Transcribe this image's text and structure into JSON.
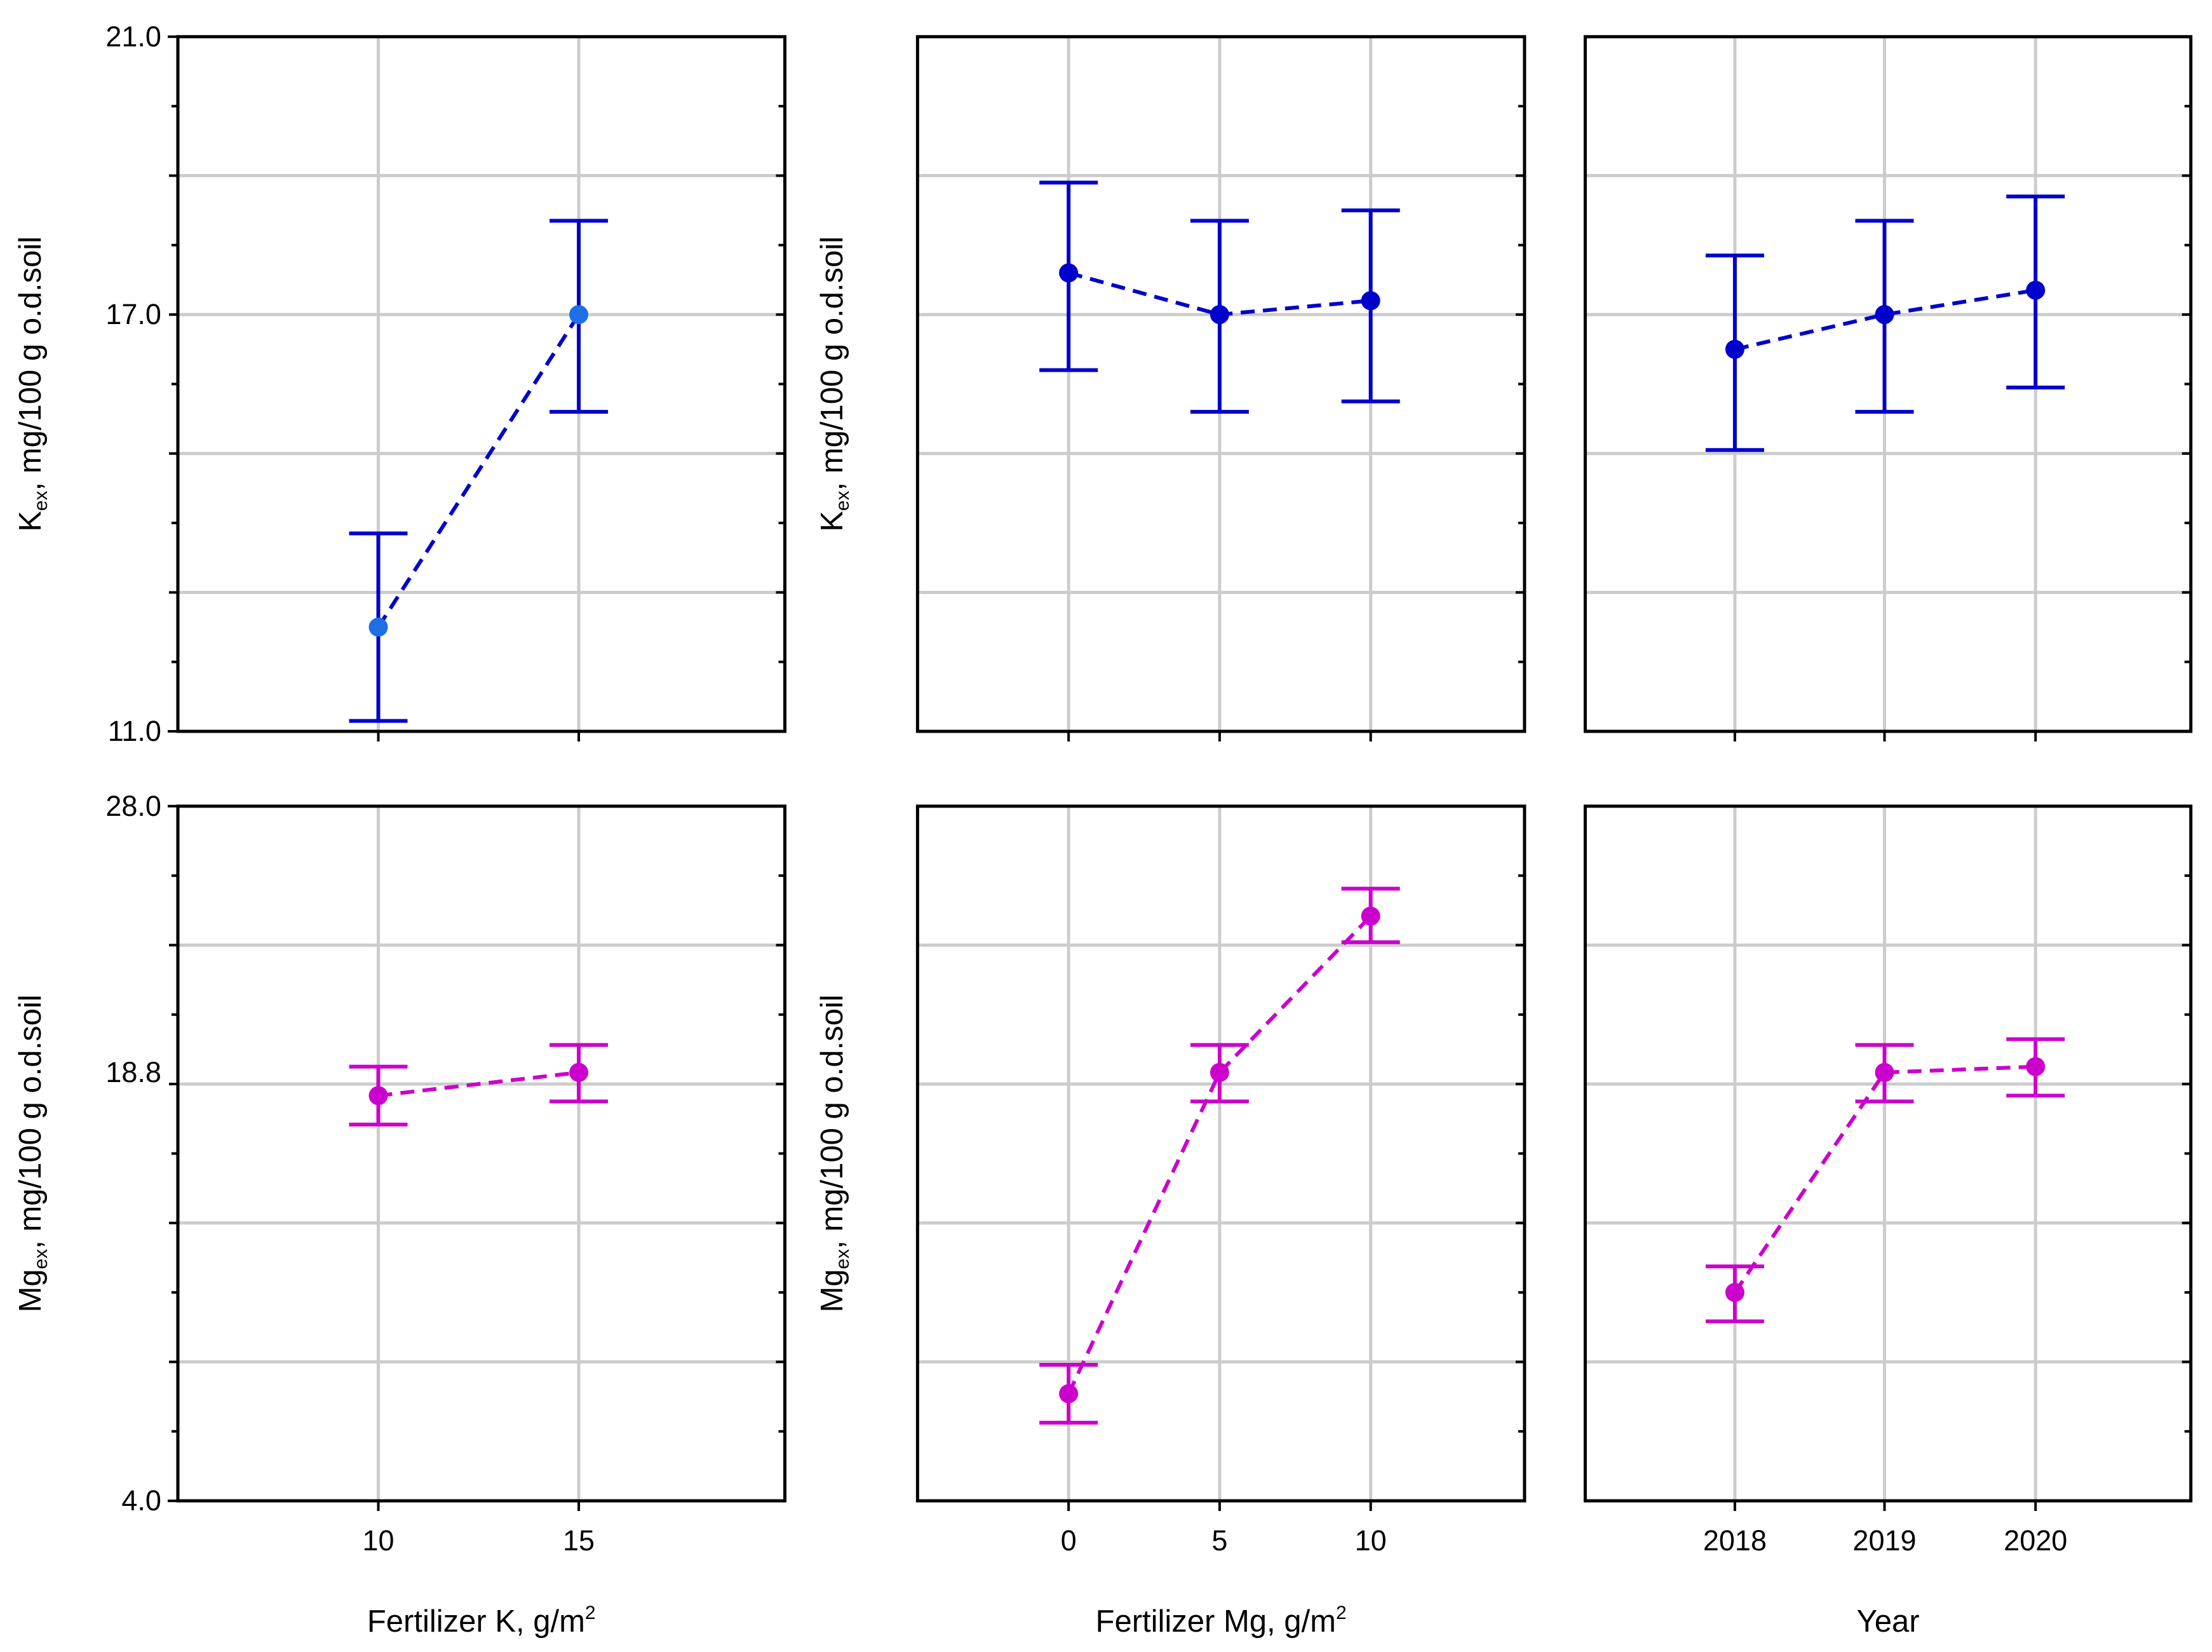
{
  "colors": {
    "row1": "#0000cc",
    "row1_point_highlight": "#1e6ee6",
    "row2": "#cc00cc",
    "grid": "#cccccc",
    "frame": "#000000"
  },
  "chart_data": [
    {
      "type": "line",
      "id": "k_by_fertilizer_k",
      "style": "means with error bars, dashed connecting line",
      "ylabel": {
        "base": "K",
        "sub": "ex",
        "rest": ",  mg/100 g o.d.soil"
      },
      "xlabel": {
        "base": "Fertilizer K,  g/m",
        "sup": "2"
      },
      "ylim": [
        11.0,
        21.0
      ],
      "y_ticks_labeled": [
        "21.0",
        "17.0",
        "11.0"
      ],
      "categories": [
        "10",
        "15"
      ],
      "values": [
        12.5,
        17.0
      ],
      "error_low": [
        11.15,
        15.6
      ],
      "error_high": [
        13.85,
        18.35
      ]
    },
    {
      "type": "line",
      "id": "k_by_fertilizer_mg",
      "style": "means with error bars, dashed connecting line",
      "ylabel": {
        "base": "K",
        "sub": "ex",
        "rest": ",  mg/100 g o.d.soil"
      },
      "xlabel": {
        "base": "Fertilizer Mg,  g/m",
        "sup": "2"
      },
      "ylim": [
        11.0,
        21.0
      ],
      "categories": [
        "0",
        "5",
        "10"
      ],
      "values": [
        17.6,
        17.0,
        17.2
      ],
      "error_low": [
        16.2,
        15.6,
        15.75
      ],
      "error_high": [
        18.9,
        18.35,
        18.5
      ]
    },
    {
      "type": "line",
      "id": "k_by_year",
      "style": "means with error bars, dashed connecting line",
      "ylabel": {
        "base": "K",
        "sub": "ex",
        "rest": ",  mg/100 g o.d.soil"
      },
      "xlabel": {
        "base": "Year"
      },
      "ylim": [
        11.0,
        21.0
      ],
      "categories": [
        "2018",
        "2019",
        "2020"
      ],
      "values": [
        16.5,
        17.0,
        17.35
      ],
      "error_low": [
        15.05,
        15.6,
        15.95
      ],
      "error_high": [
        17.85,
        18.35,
        18.7
      ]
    },
    {
      "type": "line",
      "id": "mg_by_fertilizer_k",
      "style": "means with error bars, dashed connecting line",
      "ylabel": {
        "base": "Mg",
        "sub": "ex",
        "rest": ",  mg/100 g o.d.soil"
      },
      "xlabel": {
        "base": "Fertilizer K,  g/m",
        "sup": "2"
      },
      "ylim": [
        4.0,
        28.0
      ],
      "y_ticks_labeled": [
        "28.0",
        "18.8",
        "4.0"
      ],
      "categories": [
        "10",
        "15"
      ],
      "values": [
        18.0,
        18.8
      ],
      "error_low": [
        17.0,
        17.8
      ],
      "error_high": [
        19.0,
        19.75
      ]
    },
    {
      "type": "line",
      "id": "mg_by_fertilizer_mg",
      "style": "means with error bars, dashed connecting line",
      "ylabel": {
        "base": "Mg",
        "sub": "ex",
        "rest": ",  mg/100 g o.d.soil"
      },
      "xlabel": {
        "base": "Fertilizer Mg,  g/m",
        "sup": "2"
      },
      "ylim": [
        4.0,
        28.0
      ],
      "categories": [
        "0",
        "5",
        "10"
      ],
      "values": [
        7.7,
        18.8,
        24.2
      ],
      "error_low": [
        6.7,
        17.8,
        23.3
      ],
      "error_high": [
        8.7,
        19.75,
        25.15
      ]
    },
    {
      "type": "line",
      "id": "mg_by_year",
      "style": "means with error bars, dashed connecting line",
      "ylabel": {
        "base": "Mg",
        "sub": "ex",
        "rest": ",  mg/100 g o.d.soil"
      },
      "xlabel": {
        "base": "Year"
      },
      "ylim": [
        4.0,
        28.0
      ],
      "categories": [
        "2018",
        "2019",
        "2020"
      ],
      "values": [
        11.2,
        18.8,
        19.0
      ],
      "error_low": [
        10.2,
        17.8,
        18.0
      ],
      "error_high": [
        12.1,
        19.75,
        19.95
      ]
    }
  ]
}
